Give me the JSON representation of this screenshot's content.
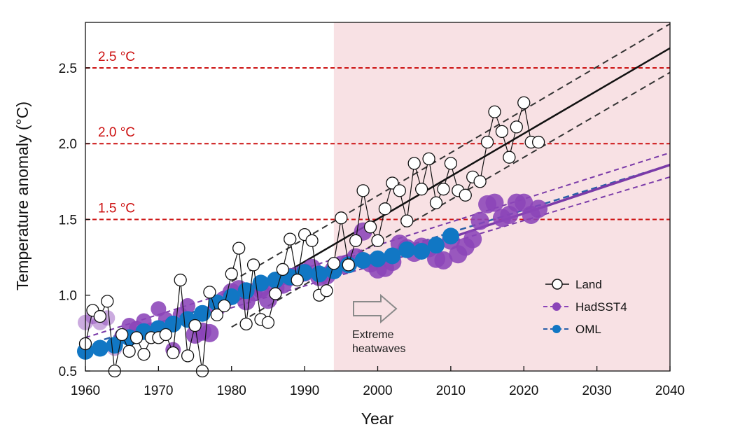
{
  "chart_data": {
    "type": "scatter",
    "xlabel": "Year",
    "ylabel": "Temperature anomaly (°C)",
    "xlim": [
      1960,
      2040
    ],
    "ylim": [
      0.5,
      2.8
    ],
    "xticks": [
      1960,
      1970,
      1980,
      1990,
      2000,
      2010,
      2020,
      2030,
      2040
    ],
    "xtick_labels": [
      "1960",
      "1970",
      "1980",
      "1990",
      "2000",
      "2010",
      "2020",
      "2030",
      "2040"
    ],
    "yticks": [
      0.5,
      1.0,
      1.5,
      2.0,
      2.5
    ],
    "ytick_labels": [
      "0.5",
      "1.0",
      "1.5",
      "2.0",
      "2.5"
    ],
    "shaded_region": {
      "x_start": 1994,
      "x_end": 2040,
      "color": "#f8e1e4"
    },
    "thresholds": [
      {
        "value": 1.5,
        "label": "1.5 °C"
      },
      {
        "value": 2.0,
        "label": "2.0 °C"
      },
      {
        "value": 2.5,
        "label": "2.5 °C"
      }
    ],
    "colors": {
      "threshold": "#cc1111",
      "land": "#111111",
      "land_trend": "#111111",
      "hadsst4": "#7a3aa8",
      "hadsst4_fill": "#8b44b8",
      "oml": "#1177c4",
      "oml_trend_dash": "#2a5fa8",
      "shade": "#f8e1e4"
    },
    "annotation": {
      "line1": "Extreme",
      "line2": "heatwaves",
      "arrow": "right-arrow"
    },
    "legend": {
      "position": "center-right",
      "items": [
        {
          "label": "Land",
          "marker": "open-circle"
        },
        {
          "label": "HadSST4",
          "marker": "purple-circle"
        },
        {
          "label": "OML",
          "marker": "blue-circle"
        }
      ]
    },
    "series": [
      {
        "name": "Land",
        "x": [
          1960,
          1961,
          1962,
          1963,
          1964,
          1965,
          1966,
          1967,
          1968,
          1969,
          1970,
          1971,
          1972,
          1973,
          1974,
          1975,
          1976,
          1977,
          1978,
          1979,
          1980,
          1981,
          1982,
          1983,
          1984,
          1985,
          1986,
          1987,
          1988,
          1989,
          1990,
          1991,
          1992,
          1993,
          1994,
          1995,
          1996,
          1997,
          1998,
          1999,
          2000,
          2001,
          2002,
          2003,
          2004,
          2005,
          2006,
          2007,
          2008,
          2009,
          2010,
          2011,
          2012,
          2013,
          2014,
          2015,
          2016,
          2017,
          2018,
          2019,
          2020,
          2021,
          2022
        ],
        "values": [
          0.68,
          0.9,
          0.86,
          0.96,
          0.5,
          0.74,
          0.63,
          0.72,
          0.61,
          0.72,
          0.72,
          0.74,
          0.62,
          1.1,
          0.6,
          0.8,
          0.5,
          1.02,
          0.87,
          0.93,
          1.14,
          1.31,
          0.81,
          1.2,
          0.84,
          0.82,
          1.01,
          1.17,
          1.37,
          1.1,
          1.4,
          1.36,
          1.0,
          1.03,
          1.21,
          1.51,
          1.2,
          1.36,
          1.69,
          1.45,
          1.36,
          1.57,
          1.74,
          1.69,
          1.49,
          1.87,
          1.7,
          1.9,
          1.61,
          1.7,
          1.87,
          1.69,
          1.66,
          1.78,
          1.75,
          2.01,
          2.21,
          2.08,
          1.91,
          2.11,
          2.27,
          2.01,
          2.01
        ]
      },
      {
        "name": "HadSST4",
        "x": [
          1960,
          1961,
          1962,
          1963,
          1964,
          1965,
          1966,
          1967,
          1968,
          1969,
          1970,
          1971,
          1972,
          1973,
          1974,
          1975,
          1976,
          1977,
          1978,
          1979,
          1980,
          1981,
          1982,
          1983,
          1984,
          1985,
          1986,
          1987,
          1988,
          1989,
          1990,
          1991,
          1992,
          1993,
          1994,
          1995,
          1996,
          1997,
          1998,
          1999,
          2000,
          2001,
          2002,
          2003,
          2004,
          2005,
          2006,
          2007,
          2008,
          2009,
          2010,
          2011,
          2012,
          2013,
          2014,
          2015,
          2016,
          2017,
          2018,
          2019,
          2020,
          2021,
          2022
        ],
        "values": [
          0.82,
          0.86,
          0.82,
          0.85,
          0.65,
          0.73,
          0.8,
          0.78,
          0.83,
          0.77,
          0.91,
          0.84,
          0.64,
          0.87,
          0.93,
          0.74,
          0.76,
          0.75,
          0.92,
          0.97,
          1.02,
          1.04,
          0.96,
          1.02,
          1.04,
          0.97,
          1.05,
          1.07,
          1.12,
          1.13,
          1.15,
          1.18,
          1.12,
          1.13,
          1.17,
          1.2,
          1.21,
          1.25,
          1.42,
          1.21,
          1.17,
          1.18,
          1.22,
          1.34,
          1.31,
          1.28,
          1.32,
          1.31,
          1.24,
          1.23,
          1.36,
          1.27,
          1.32,
          1.37,
          1.49,
          1.6,
          1.61,
          1.51,
          1.53,
          1.61,
          1.61,
          1.53,
          1.57
        ]
      },
      {
        "name": "OML",
        "x": [
          1960,
          1962,
          1964,
          1966,
          1968,
          1970,
          1972,
          1974,
          1976,
          1978,
          1980,
          1982,
          1984,
          1986,
          1988,
          1990,
          1992,
          1994,
          1996,
          1998,
          2000,
          2002,
          2004,
          2006,
          2008,
          2010
        ],
        "values": [
          0.63,
          0.65,
          0.67,
          0.72,
          0.76,
          0.78,
          0.81,
          0.84,
          0.88,
          0.95,
          0.99,
          1.03,
          1.08,
          1.1,
          1.12,
          1.15,
          1.14,
          1.16,
          1.2,
          1.23,
          1.24,
          1.26,
          1.3,
          1.29,
          1.33,
          1.39
        ]
      },
      {
        "name": "Land trend",
        "style": "solid",
        "x": [
          1980,
          2040
        ],
        "values": [
          0.94,
          2.63
        ]
      },
      {
        "name": "Land trend upper bound",
        "style": "dashed",
        "x": [
          1980,
          2040
        ],
        "values": [
          1.09,
          2.79
        ]
      },
      {
        "name": "Land trend lower bound",
        "style": "dashed",
        "x": [
          1980,
          2040
        ],
        "values": [
          0.79,
          2.47
        ]
      },
      {
        "name": "HadSST4 trend",
        "style": "solid",
        "x": [
          2000,
          2040
        ],
        "values": [
          1.22,
          1.86
        ]
      },
      {
        "name": "HadSST4 trend upper bound",
        "style": "dashed",
        "x": [
          1960,
          2040
        ],
        "values": [
          0.72,
          1.94
        ]
      },
      {
        "name": "HadSST4 trend lower bound",
        "style": "dashed",
        "x": [
          1960,
          2040
        ],
        "values": [
          0.63,
          1.78
        ]
      },
      {
        "name": "OML trend",
        "style": "dashed",
        "x": [
          1960,
          2040
        ],
        "values": [
          0.67,
          1.86
        ]
      }
    ]
  }
}
